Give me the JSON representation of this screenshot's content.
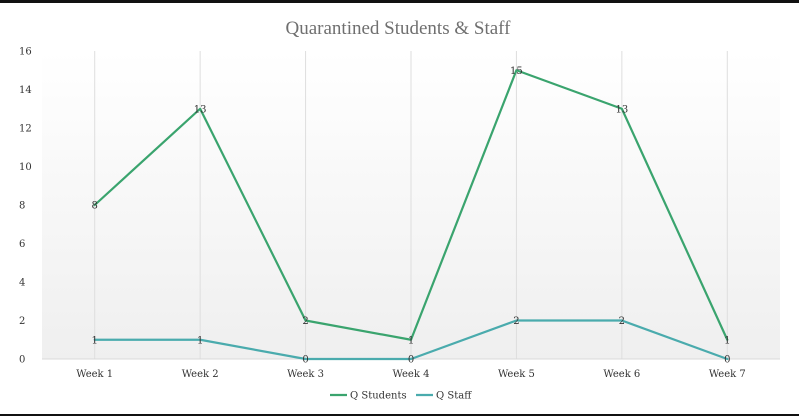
{
  "chart_data": {
    "type": "line",
    "title": "Quarantined Students & Staff",
    "xlabel": "",
    "ylabel": "",
    "categories": [
      "Week 1",
      "Week 2",
      "Week 3",
      "Week 4",
      "Week 5",
      "Week 6",
      "Week 7"
    ],
    "ylim": [
      0,
      16
    ],
    "yticks": [
      0,
      2,
      4,
      6,
      8,
      10,
      12,
      14,
      16
    ],
    "grid": "vertical",
    "legend": "bottom",
    "data_labels": true,
    "series": [
      {
        "name": "Q Students",
        "values": [
          8,
          13,
          2,
          1,
          15,
          13,
          1
        ],
        "color": "#3aa46e"
      },
      {
        "name": "Q Staff",
        "values": [
          1,
          1,
          0,
          0,
          2,
          2,
          0
        ],
        "color": "#4aabad"
      }
    ]
  }
}
